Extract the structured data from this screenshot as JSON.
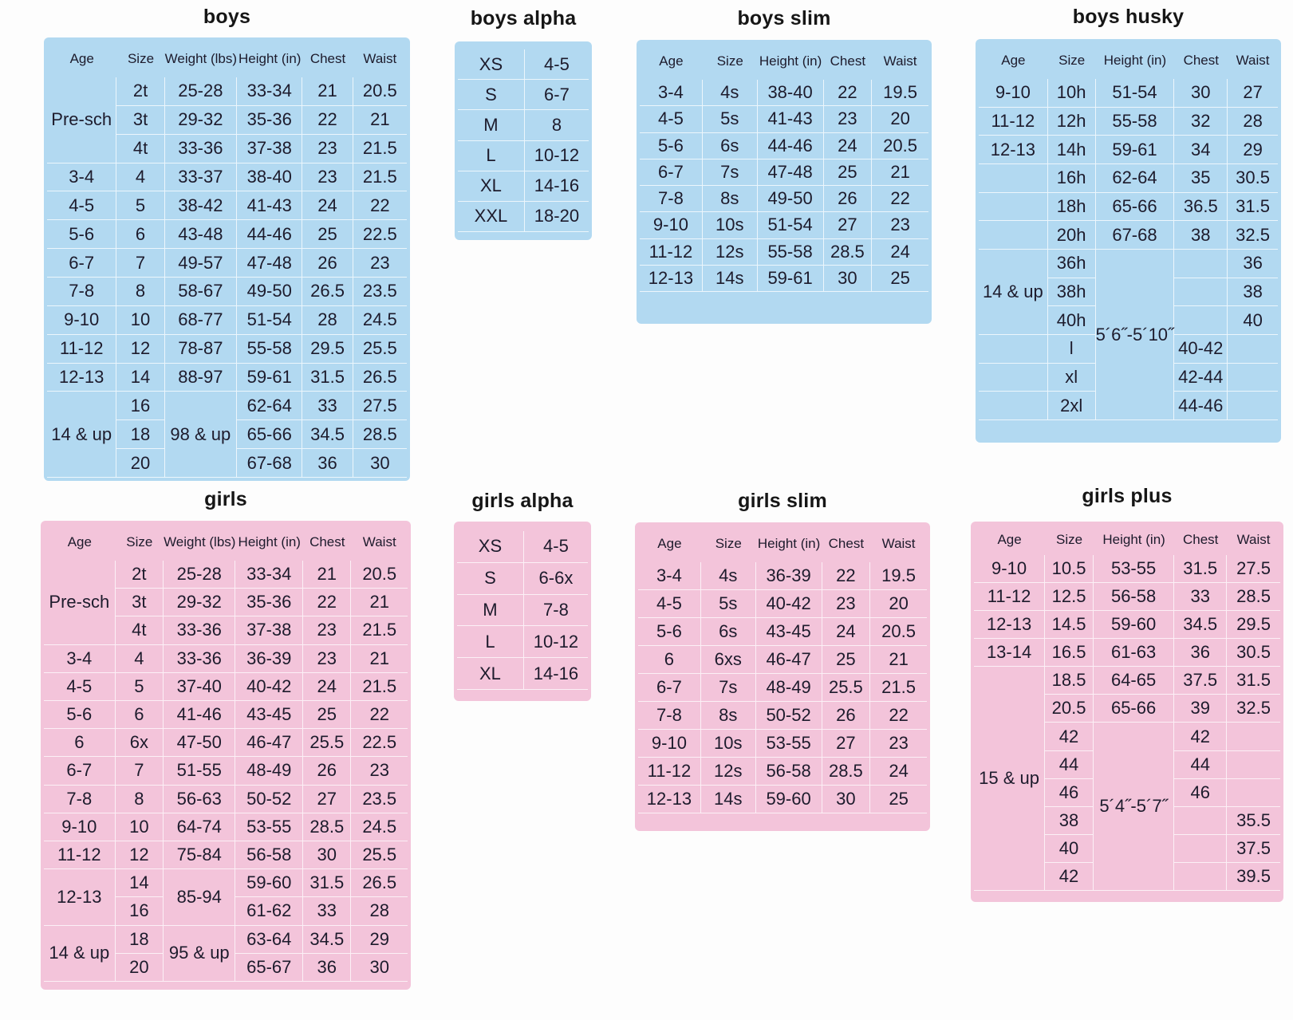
{
  "tables": [
    {
      "title": "boys",
      "columns": [
        "Age",
        "Size",
        "Weight (lbs)",
        "Height (in)",
        "Chest",
        "Waist"
      ],
      "rows": [
        [
          "Pre-sch",
          "2t",
          "25-28",
          "33-34",
          "21",
          "20.5"
        ],
        [
          null,
          "3t",
          "29-32",
          "35-36",
          "22",
          "21"
        ],
        [
          null,
          "4t",
          "33-36",
          "37-38",
          "23",
          "21.5"
        ],
        [
          "3-4",
          "4",
          "33-37",
          "38-40",
          "23",
          "21.5"
        ],
        [
          "4-5",
          "5",
          "38-42",
          "41-43",
          "24",
          "22"
        ],
        [
          "5-6",
          "6",
          "43-48",
          "44-46",
          "25",
          "22.5"
        ],
        [
          "6-7",
          "7",
          "49-57",
          "47-48",
          "26",
          "23"
        ],
        [
          "7-8",
          "8",
          "58-67",
          "49-50",
          "26.5",
          "23.5"
        ],
        [
          "9-10",
          "10",
          "68-77",
          "51-54",
          "28",
          "24.5"
        ],
        [
          "11-12",
          "12",
          "78-87",
          "55-58",
          "29.5",
          "25.5"
        ],
        [
          "12-13",
          "14",
          "88-97",
          "59-61",
          "31.5",
          "26.5"
        ],
        [
          "14 & up",
          "16",
          "98 & up",
          "62-64",
          "33",
          "27.5"
        ],
        [
          null,
          "18",
          null,
          "65-66",
          "34.5",
          "28.5"
        ],
        [
          null,
          "20",
          null,
          "67-68",
          "36",
          "30"
        ]
      ]
    },
    {
      "title": "boys alpha",
      "rows": [
        [
          "XS",
          "4-5"
        ],
        [
          "S",
          "6-7"
        ],
        [
          "M",
          "8"
        ],
        [
          "L",
          "10-12"
        ],
        [
          "XL",
          "14-16"
        ],
        [
          "XXL",
          "18-20"
        ]
      ]
    },
    {
      "title": "boys slim",
      "columns": [
        "Age",
        "Size",
        "Height (in)",
        "Chest",
        "Waist"
      ],
      "rows": [
        [
          "3-4",
          "4s",
          "38-40",
          "22",
          "19.5"
        ],
        [
          "4-5",
          "5s",
          "41-43",
          "23",
          "20"
        ],
        [
          "5-6",
          "6s",
          "44-46",
          "24",
          "20.5"
        ],
        [
          "6-7",
          "7s",
          "47-48",
          "25",
          "21"
        ],
        [
          "7-8",
          "8s",
          "49-50",
          "26",
          "22"
        ],
        [
          "9-10",
          "10s",
          "51-54",
          "27",
          "23"
        ],
        [
          "11-12",
          "12s",
          "55-58",
          "28.5",
          "24"
        ],
        [
          "12-13",
          "14s",
          "59-61",
          "30",
          "25"
        ]
      ]
    },
    {
      "title": "boys husky",
      "columns": [
        "Age",
        "Size",
        "Height (in)",
        "Chest",
        "Waist"
      ],
      "rows": [
        [
          "9-10",
          "10h",
          "51-54",
          "30",
          "27"
        ],
        [
          "11-12",
          "12h",
          "55-58",
          "32",
          "28"
        ],
        [
          "12-13",
          "14h",
          "59-61",
          "34",
          "29"
        ],
        [
          null,
          "16h",
          "62-64",
          "35",
          "30.5"
        ],
        [
          null,
          "18h",
          "65-66",
          "36.5",
          "31.5"
        ],
        [
          null,
          "20h",
          "67-68",
          "38",
          "32.5"
        ],
        [
          "14 & up",
          "36h",
          "5´6˝-5´10˝",
          null,
          "36"
        ],
        [
          null,
          "38h",
          null,
          null,
          "38"
        ],
        [
          null,
          "40h",
          null,
          null,
          "40"
        ],
        [
          null,
          "l",
          null,
          "40-42",
          null
        ],
        [
          null,
          "xl",
          null,
          "42-44",
          null
        ],
        [
          null,
          "2xl",
          null,
          "44-46",
          null
        ]
      ]
    },
    {
      "title": "girls",
      "columns": [
        "Age",
        "Size",
        "Weight (lbs)",
        "Height (in)",
        "Chest",
        "Waist"
      ],
      "rows": [
        [
          "Pre-sch",
          "2t",
          "25-28",
          "33-34",
          "21",
          "20.5"
        ],
        [
          null,
          "3t",
          "29-32",
          "35-36",
          "22",
          "21"
        ],
        [
          null,
          "4t",
          "33-36",
          "37-38",
          "23",
          "21.5"
        ],
        [
          "3-4",
          "4",
          "33-36",
          "36-39",
          "23",
          "21"
        ],
        [
          "4-5",
          "5",
          "37-40",
          "40-42",
          "24",
          "21.5"
        ],
        [
          "5-6",
          "6",
          "41-46",
          "43-45",
          "25",
          "22"
        ],
        [
          "6",
          "6x",
          "47-50",
          "46-47",
          "25.5",
          "22.5"
        ],
        [
          "6-7",
          "7",
          "51-55",
          "48-49",
          "26",
          "23"
        ],
        [
          "7-8",
          "8",
          "56-63",
          "50-52",
          "27",
          "23.5"
        ],
        [
          "9-10",
          "10",
          "64-74",
          "53-55",
          "28.5",
          "24.5"
        ],
        [
          "11-12",
          "12",
          "75-84",
          "56-58",
          "30",
          "25.5"
        ],
        [
          "12-13",
          "14",
          "85-94",
          "59-60",
          "31.5",
          "26.5"
        ],
        [
          null,
          "16",
          null,
          "61-62",
          "33",
          "28"
        ],
        [
          "14 & up",
          "18",
          "95 & up",
          "63-64",
          "34.5",
          "29"
        ],
        [
          null,
          "20",
          null,
          "65-67",
          "36",
          "30"
        ]
      ]
    },
    {
      "title": "girls alpha",
      "rows": [
        [
          "XS",
          "4-5"
        ],
        [
          "S",
          "6-6x"
        ],
        [
          "M",
          "7-8"
        ],
        [
          "L",
          "10-12"
        ],
        [
          "XL",
          "14-16"
        ]
      ]
    },
    {
      "title": "girls slim",
      "columns": [
        "Age",
        "Size",
        "Height (in)",
        "Chest",
        "Waist"
      ],
      "rows": [
        [
          "3-4",
          "4s",
          "36-39",
          "22",
          "19.5"
        ],
        [
          "4-5",
          "5s",
          "40-42",
          "23",
          "20"
        ],
        [
          "5-6",
          "6s",
          "43-45",
          "24",
          "20.5"
        ],
        [
          "6",
          "6xs",
          "46-47",
          "25",
          "21"
        ],
        [
          "6-7",
          "7s",
          "48-49",
          "25.5",
          "21.5"
        ],
        [
          "7-8",
          "8s",
          "50-52",
          "26",
          "22"
        ],
        [
          "9-10",
          "10s",
          "53-55",
          "27",
          "23"
        ],
        [
          "11-12",
          "12s",
          "56-58",
          "28.5",
          "24"
        ],
        [
          "12-13",
          "14s",
          "59-60",
          "30",
          "25"
        ]
      ]
    },
    {
      "title": "girls plus",
      "columns": [
        "Age",
        "Size",
        "Height (in)",
        "Chest",
        "Waist"
      ],
      "rows": [
        [
          "9-10",
          "10.5",
          "53-55",
          "31.5",
          "27.5"
        ],
        [
          "11-12",
          "12.5",
          "56-58",
          "33",
          "28.5"
        ],
        [
          "12-13",
          "14.5",
          "59-60",
          "34.5",
          "29.5"
        ],
        [
          "13-14",
          "16.5",
          "61-63",
          "36",
          "30.5"
        ],
        [
          "15 & up",
          "18.5",
          "64-65",
          "37.5",
          "31.5"
        ],
        [
          null,
          "20.5",
          "65-66",
          "39",
          "32.5"
        ],
        [
          null,
          "42",
          "5´4˝-5´7˝",
          "42",
          null
        ],
        [
          null,
          "44",
          null,
          "44",
          null
        ],
        [
          null,
          "46",
          null,
          "46",
          null
        ],
        [
          null,
          "38",
          null,
          null,
          "35.5"
        ],
        [
          null,
          "40",
          null,
          null,
          "37.5"
        ],
        [
          null,
          "42",
          null,
          null,
          "39.5"
        ]
      ]
    }
  ]
}
